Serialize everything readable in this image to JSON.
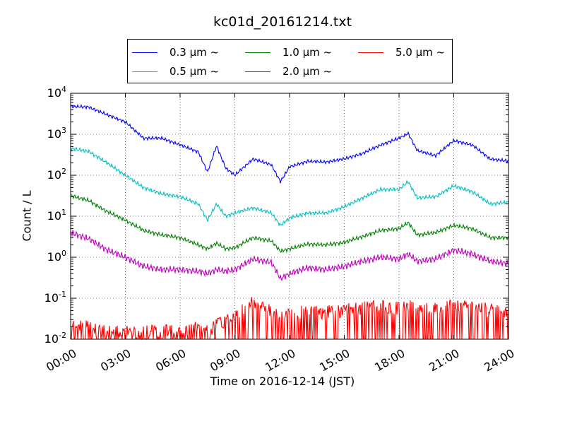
{
  "chart_data": {
    "type": "line",
    "title": "kc01d_20161214.txt",
    "xlabel": "Time on 2016-12-14 (JST)",
    "ylabel": "Count / L",
    "y_scale": "log",
    "ylim": [
      0.01,
      10000
    ],
    "xlim": [
      "00:00",
      "24:00"
    ],
    "x_ticks": [
      "00:00",
      "03:00",
      "06:00",
      "09:00",
      "12:00",
      "15:00",
      "18:00",
      "21:00",
      "24:00"
    ],
    "y_ticks": [
      {
        "base": "10",
        "exp": "4"
      },
      {
        "base": "10",
        "exp": "3"
      },
      {
        "base": "10",
        "exp": "2"
      },
      {
        "base": "10",
        "exp": "1"
      },
      {
        "base": "10",
        "exp": "0"
      },
      {
        "base": "10",
        "exp": "-1"
      },
      {
        "base": "10",
        "exp": "-2"
      }
    ],
    "grid": true,
    "legend_position": "top-center",
    "x": [
      "00:00",
      "01:00",
      "02:00",
      "03:00",
      "04:00",
      "05:00",
      "06:00",
      "07:00",
      "07:30",
      "08:00",
      "08:30",
      "09:00",
      "10:00",
      "11:00",
      "11:30",
      "12:00",
      "13:00",
      "14:00",
      "15:00",
      "16:00",
      "17:00",
      "18:00",
      "18:30",
      "19:00",
      "20:00",
      "21:00",
      "22:00",
      "23:00",
      "24:00"
    ],
    "series": [
      {
        "name": "0.3 μm ~",
        "color": "#0000ff",
        "values": [
          4800,
          4600,
          3000,
          2000,
          800,
          800,
          550,
          370,
          120,
          520,
          150,
          100,
          250,
          180,
          70,
          160,
          220,
          210,
          250,
          340,
          550,
          800,
          1050,
          400,
          300,
          700,
          550,
          250,
          220
        ]
      },
      {
        "name": "0.5 μm ~",
        "color": "#00bfbf",
        "values": [
          450,
          380,
          200,
          100,
          50,
          35,
          30,
          20,
          8,
          20,
          10,
          12,
          16,
          12,
          6,
          9,
          12,
          12,
          17,
          28,
          45,
          45,
          70,
          28,
          30,
          55,
          40,
          20,
          22
        ]
      },
      {
        "name": "1.0 μm ~",
        "color": "#008000",
        "values": [
          32,
          24,
          13,
          8,
          4.5,
          3.5,
          3,
          2,
          1.6,
          2.2,
          1.6,
          1.7,
          3,
          2.5,
          1.4,
          1.6,
          2.1,
          2,
          2.3,
          3.2,
          4.5,
          5,
          7,
          3.5,
          4,
          6,
          5,
          3,
          3
        ]
      },
      {
        "name": "2.0 μm ~",
        "color": "#bf00bf",
        "values": [
          4,
          2.8,
          1.5,
          1,
          0.6,
          0.5,
          0.5,
          0.45,
          0.4,
          0.5,
          0.45,
          0.5,
          0.9,
          0.75,
          0.3,
          0.4,
          0.55,
          0.5,
          0.6,
          0.8,
          1,
          0.9,
          1.2,
          0.8,
          0.9,
          1.5,
          1.2,
          0.8,
          0.7
        ]
      },
      {
        "name": "5.0 μm ~",
        "color": "#ff0000",
        "values": [
          0.02,
          0.015,
          0.012,
          0.012,
          0.012,
          0.012,
          0.012,
          0.015,
          0.012,
          0.018,
          0.02,
          0.03,
          0.06,
          0.035,
          0.03,
          0.03,
          0.04,
          0.035,
          0.04,
          0.045,
          0.05,
          0.045,
          0.05,
          0.04,
          0.045,
          0.05,
          0.045,
          0.04,
          0.03
        ]
      }
    ]
  }
}
